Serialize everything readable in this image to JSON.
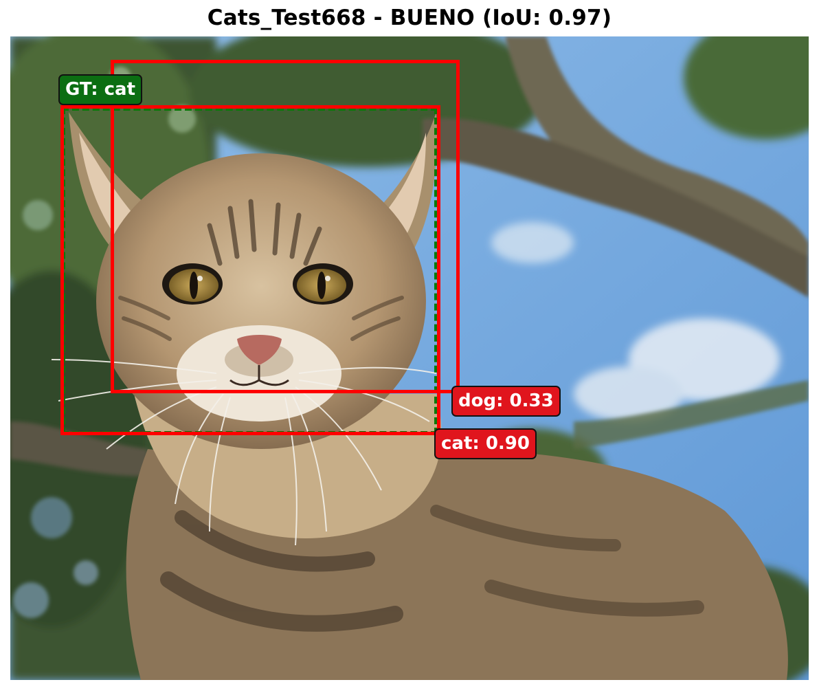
{
  "title": "Cats_Test668 - BUENO (IoU: 0.97)",
  "image": {
    "subject": "tabby cat in a tree",
    "colors": {
      "sky": "#6fa6dc",
      "foliage": "#3e5a2c",
      "branch": "#6b6450",
      "fur": "#b79a74"
    }
  },
  "ground_truth": {
    "label": "GT: cat",
    "color": "#0b6e12"
  },
  "predictions": [
    {
      "label": "cat: 0.90",
      "class": "cat",
      "score": 0.9,
      "color": "#e0151d"
    },
    {
      "label": "dog: 0.33",
      "class": "dog",
      "score": 0.33,
      "color": "#e0151d"
    }
  ]
}
